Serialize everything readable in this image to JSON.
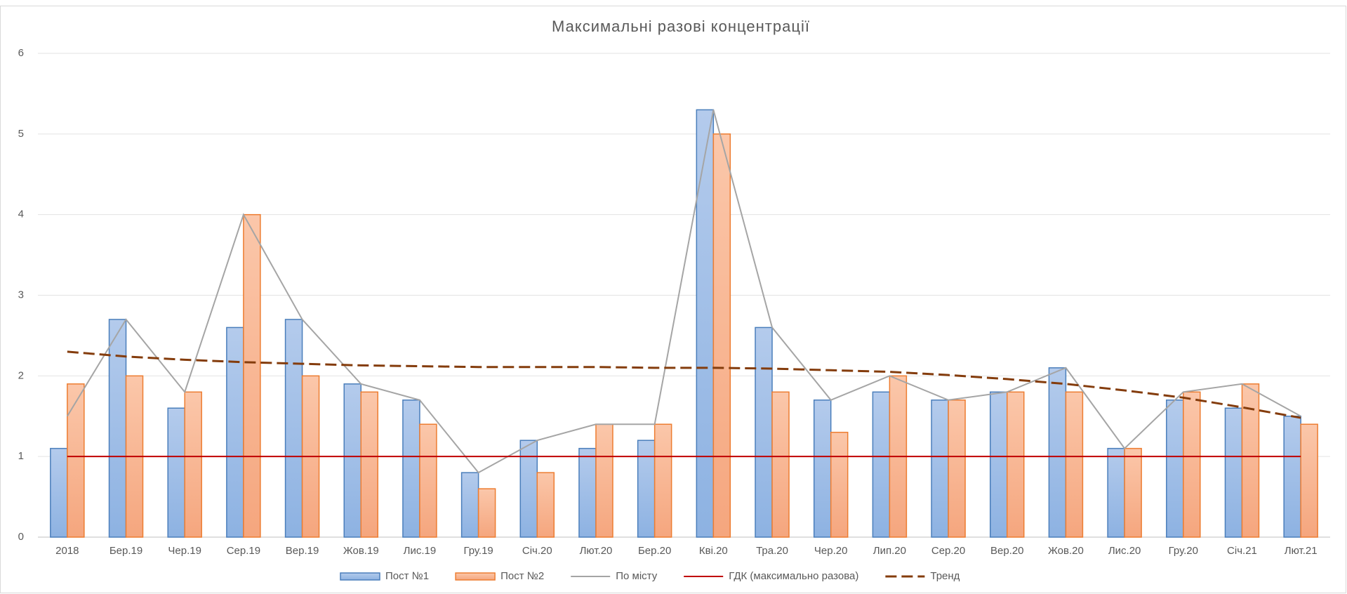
{
  "chart_data": {
    "type": "bar",
    "title": "Максимальні разові концентрації",
    "categories": [
      "2018",
      "Бер.19",
      "Чер.19",
      "Сер.19",
      "Вер.19",
      "Жов.19",
      "Лис.19",
      "Гру.19",
      "Січ.20",
      "Лют.20",
      "Бер.20",
      "Кві.20",
      "Тра.20",
      "Чер.20",
      "Лип.20",
      "Сер.20",
      "Вер.20",
      "Жов.20",
      "Лис.20",
      "Гру.20",
      "Січ.21",
      "Лют.21"
    ],
    "series": [
      {
        "name": "Пост №1",
        "type": "bar",
        "color": "#4a7ebb",
        "fill": "#a7c2e8",
        "values": [
          1.1,
          2.7,
          1.6,
          2.6,
          2.7,
          1.9,
          1.7,
          0.8,
          1.2,
          1.1,
          1.2,
          5.3,
          2.6,
          1.7,
          1.8,
          1.7,
          1.8,
          2.1,
          1.1,
          1.7,
          1.6,
          1.5
        ]
      },
      {
        "name": "Пост №2",
        "type": "bar",
        "color": "#ed7d31",
        "fill": "#f8b996",
        "values": [
          1.9,
          2.0,
          1.8,
          4.0,
          2.0,
          1.8,
          1.4,
          0.6,
          0.8,
          1.4,
          1.4,
          5.0,
          1.8,
          1.3,
          2.0,
          1.7,
          1.8,
          1.8,
          1.1,
          1.8,
          1.9,
          1.4
        ]
      },
      {
        "name": "По місту",
        "type": "line",
        "color": "#a5a5a5",
        "values": [
          1.5,
          2.7,
          1.8,
          4.0,
          2.7,
          1.9,
          1.7,
          0.8,
          1.2,
          1.4,
          1.4,
          5.3,
          2.6,
          1.7,
          2.0,
          1.7,
          1.8,
          2.1,
          1.1,
          1.8,
          1.9,
          1.5
        ]
      },
      {
        "name": "ГДК (максимально разова)",
        "type": "line",
        "color": "#c00000",
        "values": [
          1,
          1,
          1,
          1,
          1,
          1,
          1,
          1,
          1,
          1,
          1,
          1,
          1,
          1,
          1,
          1,
          1,
          1,
          1,
          1,
          1,
          1
        ]
      },
      {
        "name": "Тренд",
        "type": "line",
        "dashed": true,
        "color": "#843c0c",
        "values": [
          2.3,
          2.24,
          2.2,
          2.17,
          2.15,
          2.13,
          2.12,
          2.11,
          2.11,
          2.11,
          2.1,
          2.1,
          2.09,
          2.07,
          2.05,
          2.01,
          1.96,
          1.9,
          1.82,
          1.73,
          1.61,
          1.48
        ]
      }
    ],
    "ylim": [
      0,
      6
    ],
    "yticks": [
      0,
      1,
      2,
      3,
      4,
      5,
      6
    ],
    "grid": true
  }
}
